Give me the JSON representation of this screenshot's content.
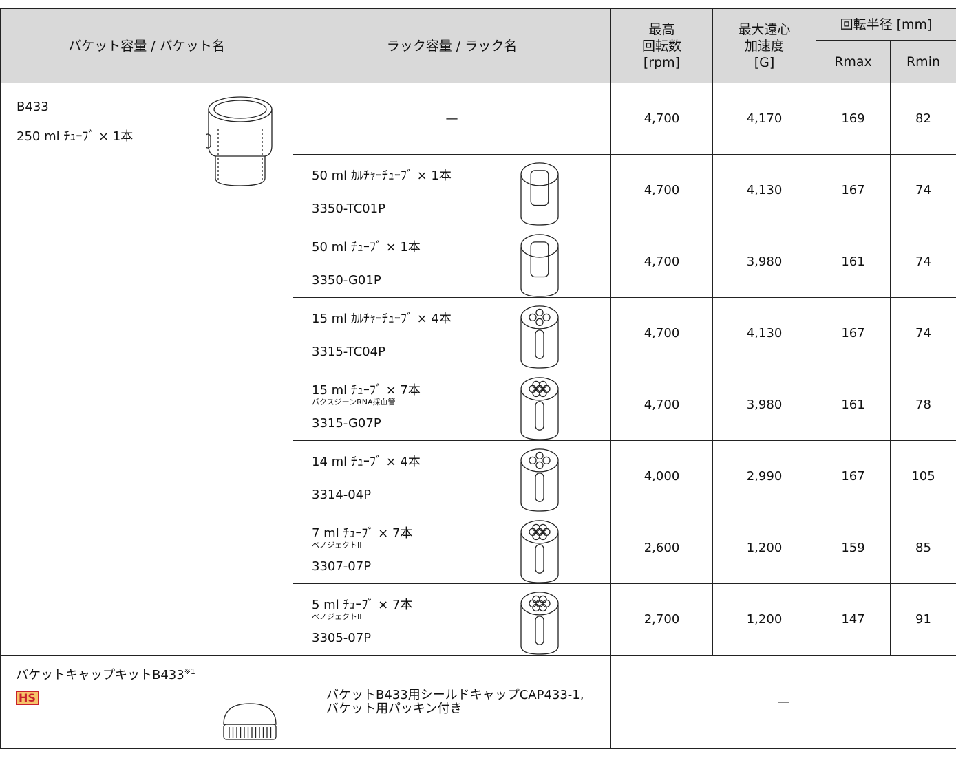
{
  "header": {
    "bucket": "バケット容量 / バケット名",
    "rack": "ラック容量 / ラック名",
    "max_speed": [
      "最高",
      "回転数",
      "[rpm]"
    ],
    "max_g": [
      "最大遠心",
      "加速度",
      "[G]"
    ],
    "radius": "回転半径 [mm]",
    "rmax": "Rmax",
    "rmin": "Rmin"
  },
  "bucket": {
    "name": "B433",
    "capacity": "250 ml ﾁｭｰﾌﾞ × 1本"
  },
  "rows": [
    {
      "rack": "—",
      "rpm": "4,700",
      "g": "4,170",
      "rmax": "169",
      "rmin": "82"
    },
    {
      "capacity": "50 ml ｶﾙﾁｬｰﾁｭｰﾌﾞ × 1本",
      "name": "3350-TC01P",
      "rpm": "4,700",
      "g": "4,130",
      "rmax": "167",
      "rmin": "74"
    },
    {
      "capacity": "50 ml ﾁｭｰﾌﾞ × 1本",
      "name": "3350-G01P",
      "rpm": "4,700",
      "g": "3,980",
      "rmax": "161",
      "rmin": "74"
    },
    {
      "capacity": "15 ml ｶﾙﾁｬｰﾁｭｰﾌﾞ × 4本",
      "name": "3315-TC04P",
      "rpm": "4,700",
      "g": "4,130",
      "rmax": "167",
      "rmin": "74"
    },
    {
      "capacity": "15 ml ﾁｭｰﾌﾞ × 7本",
      "note": "パクスジーンRNA採血管",
      "name": "3315-G07P",
      "rpm": "4,700",
      "g": "3,980",
      "rmax": "161",
      "rmin": "78"
    },
    {
      "capacity": "14 ml ﾁｭｰﾌﾞ × 4本",
      "name": "3314-04P",
      "rpm": "4,000",
      "g": "2,990",
      "rmax": "167",
      "rmin": "105"
    },
    {
      "capacity": "7 ml ﾁｭｰﾌﾞ × 7本",
      "note": "ベノジェクトII",
      "name": "3307-07P",
      "rpm": "2,600",
      "g": "1,200",
      "rmax": "159",
      "rmin": "85"
    },
    {
      "capacity": "5 ml ﾁｭｰﾌﾞ × 7本",
      "note": "ベノジェクトII",
      "name": "3305-07P",
      "rpm": "2,700",
      "g": "1,200",
      "rmax": "147",
      "rmin": "91"
    }
  ],
  "cap_kit": {
    "name": "バケットキャップキットB433",
    "mark": "※1",
    "badge": "HS",
    "description": [
      "バケットB433用シールドキャップCAP433-1,",
      "バケット用パッキン付き"
    ],
    "values": "—"
  }
}
